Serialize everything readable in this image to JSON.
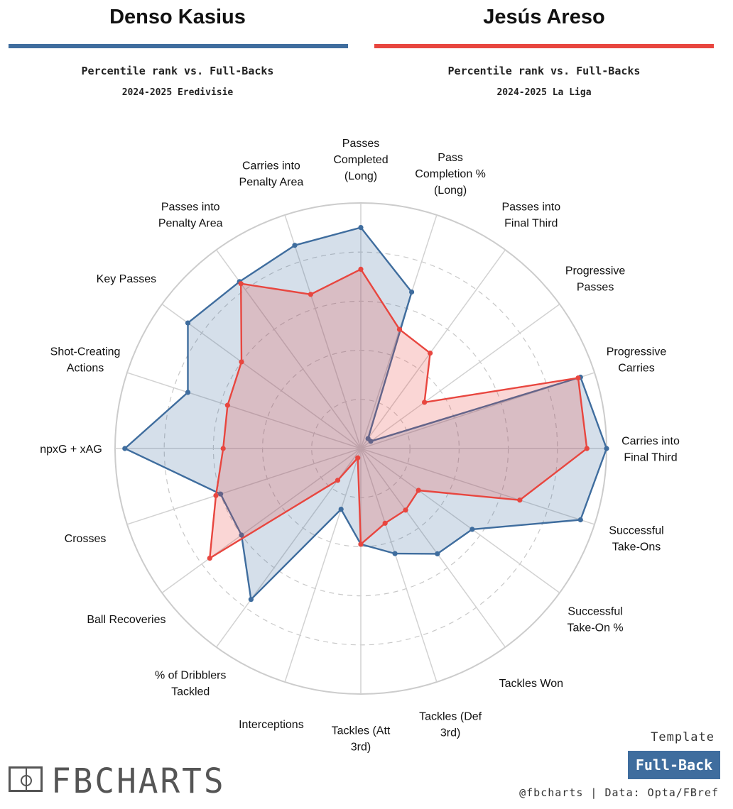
{
  "header": {
    "player1": {
      "name": "Denso Kasius",
      "rank_label": "Percentile rank vs. Full-Backs",
      "season": "2024-2025 Eredivisie",
      "color": "#3f6d9e"
    },
    "player2": {
      "name": "Jesús Areso",
      "rank_label": "Percentile rank vs. Full-Backs",
      "season": "2024-2025 La Liga",
      "color": "#e8463f"
    }
  },
  "chart_data": {
    "type": "radar",
    "rlim": [
      0,
      100
    ],
    "rings": [
      20,
      40,
      60,
      80,
      100
    ],
    "grid": true,
    "categories": [
      "Passes Completed (Long)",
      "Pass Completion % (Long)",
      "Passes into Final Third",
      "Progressive Passes",
      "Progressive Carries",
      "Carries into Final Third",
      "Successful Take-Ons",
      "Successful Take-On %",
      "Tackles Won",
      "Tackles (Def 3rd)",
      "Tackles (Att 3rd)",
      "Interceptions",
      "% of Dribblers Tackled",
      "Ball Recoveries",
      "Crosses",
      "npxG + xAG",
      "Shot-Creating Actions",
      "Key Passes",
      "Passes into Penalty Area",
      "Carries into Penalty Area"
    ],
    "label_lines": [
      [
        "Passes",
        "Completed",
        "(Long)"
      ],
      [
        "Pass",
        "Completion %",
        "(Long)"
      ],
      [
        "Passes into",
        "Final Third"
      ],
      [
        "Progressive",
        "Passes"
      ],
      [
        "Progressive",
        "Carries"
      ],
      [
        "Carries into",
        "Final Third"
      ],
      [
        "Successful",
        "Take-Ons"
      ],
      [
        "Successful",
        "Take-On %"
      ],
      [
        "Tackles Won"
      ],
      [
        "Tackles (Def",
        "3rd)"
      ],
      [
        "Tackles (Att",
        "3rd)"
      ],
      [
        "Interceptions"
      ],
      [
        "% of Dribblers",
        "Tackled"
      ],
      [
        "Ball Recoveries"
      ],
      [
        "Crosses"
      ],
      [
        "npxG + xAG"
      ],
      [
        "Shot-Creating",
        "Actions"
      ],
      [
        "Key Passes"
      ],
      [
        "Passes into",
        "Penalty Area"
      ],
      [
        "Carries into",
        "Penalty Area"
      ]
    ],
    "series": [
      {
        "name": "Denso Kasius",
        "color": "#3f6d9e",
        "values": [
          90,
          67,
          5,
          5,
          94,
          100,
          94,
          56,
          53,
          45,
          39,
          26,
          76,
          60,
          60,
          96,
          74,
          87,
          84,
          87
        ]
      },
      {
        "name": "Jesús Areso",
        "color": "#e8463f",
        "values": [
          73,
          51,
          48,
          32,
          93,
          92,
          68,
          29,
          31,
          32,
          39,
          4,
          16,
          76,
          62,
          56,
          57,
          60,
          83,
          66
        ]
      }
    ]
  },
  "branding": {
    "logo_text": "FBCHARTS",
    "template_label": "Template",
    "template_badge": "Full-Back",
    "credit": "@fbcharts | Data: Opta/FBref"
  }
}
